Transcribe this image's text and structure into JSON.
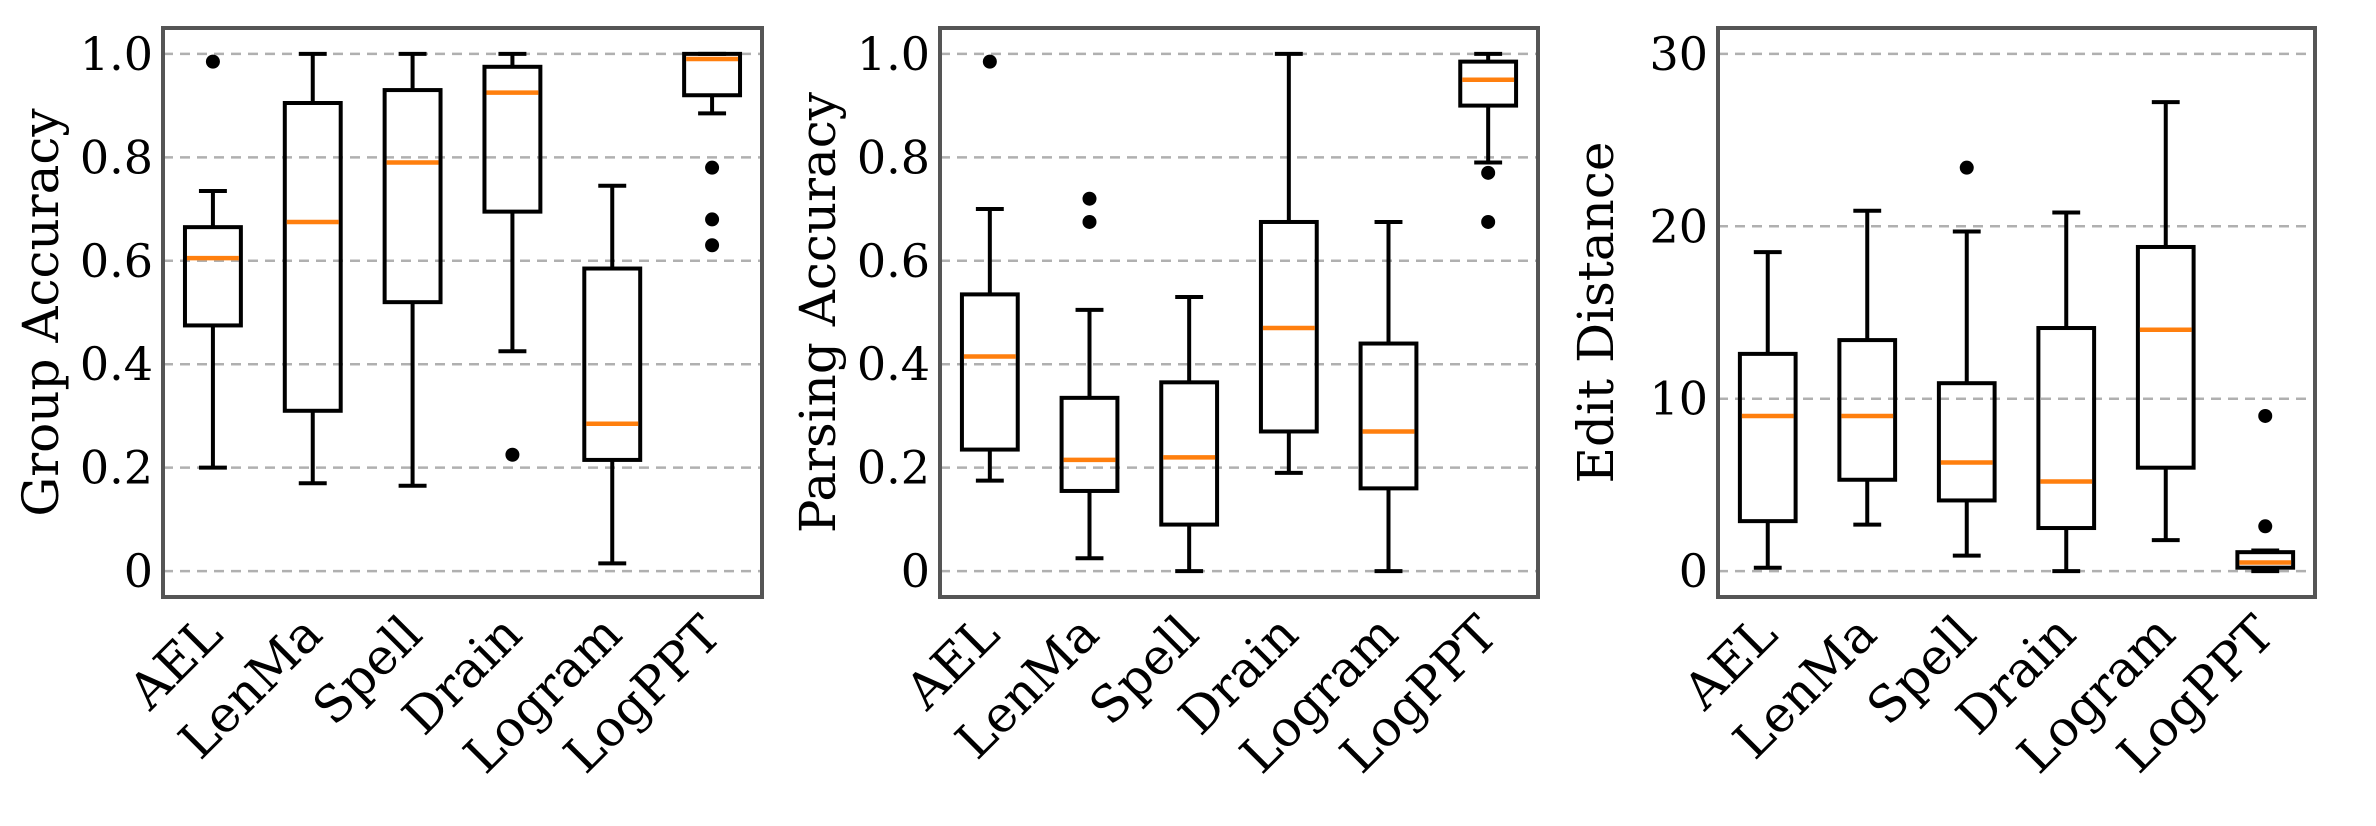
{
  "colors": {
    "median": "#ff7f0e",
    "box": "#000000",
    "grid": "#b0b0b0",
    "frame": "#555555"
  },
  "chart_data": [
    {
      "type": "box",
      "ylabel": "Group Accuracy",
      "ylim": [
        -0.05,
        1.05
      ],
      "yticks": [
        0,
        0.2,
        0.4,
        0.6,
        0.8,
        1.0
      ],
      "ytick_labels": [
        "0",
        "0.2",
        "0.4",
        "0.6",
        "0.8",
        "1.0"
      ],
      "categories": [
        "AEL",
        "LenMa",
        "Spell",
        "Drain",
        "Logram",
        "LogPPT"
      ],
      "boxes": [
        {
          "whislo": 0.2,
          "q1": 0.475,
          "med": 0.605,
          "q3": 0.665,
          "whishi": 0.735,
          "fliers": [
            0.985
          ]
        },
        {
          "whislo": 0.17,
          "q1": 0.31,
          "med": 0.675,
          "q3": 0.905,
          "whishi": 1.0,
          "fliers": []
        },
        {
          "whislo": 0.165,
          "q1": 0.52,
          "med": 0.79,
          "q3": 0.93,
          "whishi": 1.0,
          "fliers": []
        },
        {
          "whislo": 0.425,
          "q1": 0.695,
          "med": 0.925,
          "q3": 0.975,
          "whishi": 1.0,
          "fliers": [
            0.225
          ]
        },
        {
          "whislo": 0.015,
          "q1": 0.215,
          "med": 0.285,
          "q3": 0.585,
          "whishi": 0.745,
          "fliers": []
        },
        {
          "whislo": 0.885,
          "q1": 0.92,
          "med": 0.99,
          "q3": 1.0,
          "whishi": 1.0,
          "fliers": [
            0.78,
            0.68,
            0.63
          ]
        }
      ]
    },
    {
      "type": "box",
      "ylabel": "Parsing Accuracy",
      "ylim": [
        -0.05,
        1.05
      ],
      "yticks": [
        0,
        0.2,
        0.4,
        0.6,
        0.8,
        1.0
      ],
      "ytick_labels": [
        "0",
        "0.2",
        "0.4",
        "0.6",
        "0.8",
        "1.0"
      ],
      "categories": [
        "AEL",
        "LenMa",
        "Spell",
        "Drain",
        "Logram",
        "LogPPT"
      ],
      "boxes": [
        {
          "whislo": 0.175,
          "q1": 0.235,
          "med": 0.415,
          "q3": 0.535,
          "whishi": 0.7,
          "fliers": [
            0.985
          ]
        },
        {
          "whislo": 0.025,
          "q1": 0.155,
          "med": 0.215,
          "q3": 0.335,
          "whishi": 0.505,
          "fliers": [
            0.72,
            0.675
          ]
        },
        {
          "whislo": 0.0,
          "q1": 0.09,
          "med": 0.22,
          "q3": 0.365,
          "whishi": 0.53,
          "fliers": []
        },
        {
          "whislo": 0.19,
          "q1": 0.27,
          "med": 0.47,
          "q3": 0.675,
          "whishi": 1.0,
          "fliers": []
        },
        {
          "whislo": 0.0,
          "q1": 0.16,
          "med": 0.27,
          "q3": 0.44,
          "whishi": 0.675,
          "fliers": []
        },
        {
          "whislo": 0.79,
          "q1": 0.9,
          "med": 0.95,
          "q3": 0.985,
          "whishi": 1.0,
          "fliers": [
            0.77,
            0.675
          ]
        }
      ]
    },
    {
      "type": "box",
      "ylabel": "Edit Distance",
      "ylim": [
        -1.5,
        31.5
      ],
      "yticks": [
        0,
        10,
        20,
        30
      ],
      "ytick_labels": [
        "0",
        "10",
        "20",
        "30"
      ],
      "categories": [
        "AEL",
        "LenMa",
        "Spell",
        "Drain",
        "Logram",
        "LogPPT"
      ],
      "boxes": [
        {
          "whislo": 0.2,
          "q1": 2.9,
          "med": 9.0,
          "q3": 12.6,
          "whishi": 18.5,
          "fliers": []
        },
        {
          "whislo": 2.7,
          "q1": 5.3,
          "med": 9.0,
          "q3": 13.4,
          "whishi": 20.9,
          "fliers": []
        },
        {
          "whislo": 0.9,
          "q1": 4.1,
          "med": 6.3,
          "q3": 10.9,
          "whishi": 19.7,
          "fliers": [
            23.4
          ]
        },
        {
          "whislo": 0.0,
          "q1": 2.5,
          "med": 5.2,
          "q3": 14.1,
          "whishi": 20.8,
          "fliers": []
        },
        {
          "whislo": 1.8,
          "q1": 6.0,
          "med": 14.0,
          "q3": 18.8,
          "whishi": 27.2,
          "fliers": []
        },
        {
          "whislo": 0.0,
          "q1": 0.2,
          "med": 0.5,
          "q3": 1.1,
          "whishi": 1.2,
          "fliers": [
            9.0,
            2.6
          ]
        }
      ]
    }
  ]
}
